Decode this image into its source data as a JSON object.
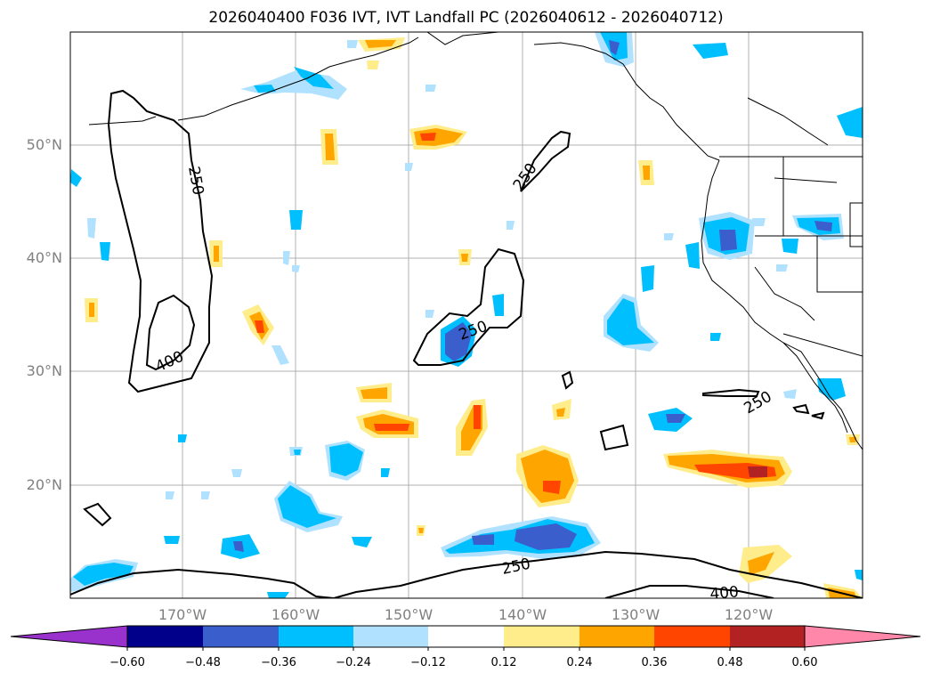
{
  "title": "2026040400 F036 IVT, IVT Landfall PC (2026040612 - 2026040712)",
  "lat_labels": [
    "50°N",
    "40°N",
    "30°N",
    "20°N"
  ],
  "lon_labels": [
    "170°W",
    "160°W",
    "150°W",
    "140°W",
    "130°W",
    "120°W"
  ],
  "contour_labels": [
    "250",
    "250",
    "250",
    "250",
    "250",
    "400",
    "400"
  ],
  "colorbar": {
    "colors": [
      "#9932cc",
      "#00008b",
      "#3a5fcd",
      "#00bfff",
      "#b0e2ff",
      "#ffffff",
      "#ffec8b",
      "#ffa500",
      "#ff4500",
      "#b22222",
      "#ff88aa"
    ],
    "ticks": [
      "−0.60",
      "−0.48",
      "−0.36",
      "−0.24",
      "−0.12",
      "0.12",
      "0.24",
      "0.36",
      "0.48",
      "0.60"
    ]
  }
}
